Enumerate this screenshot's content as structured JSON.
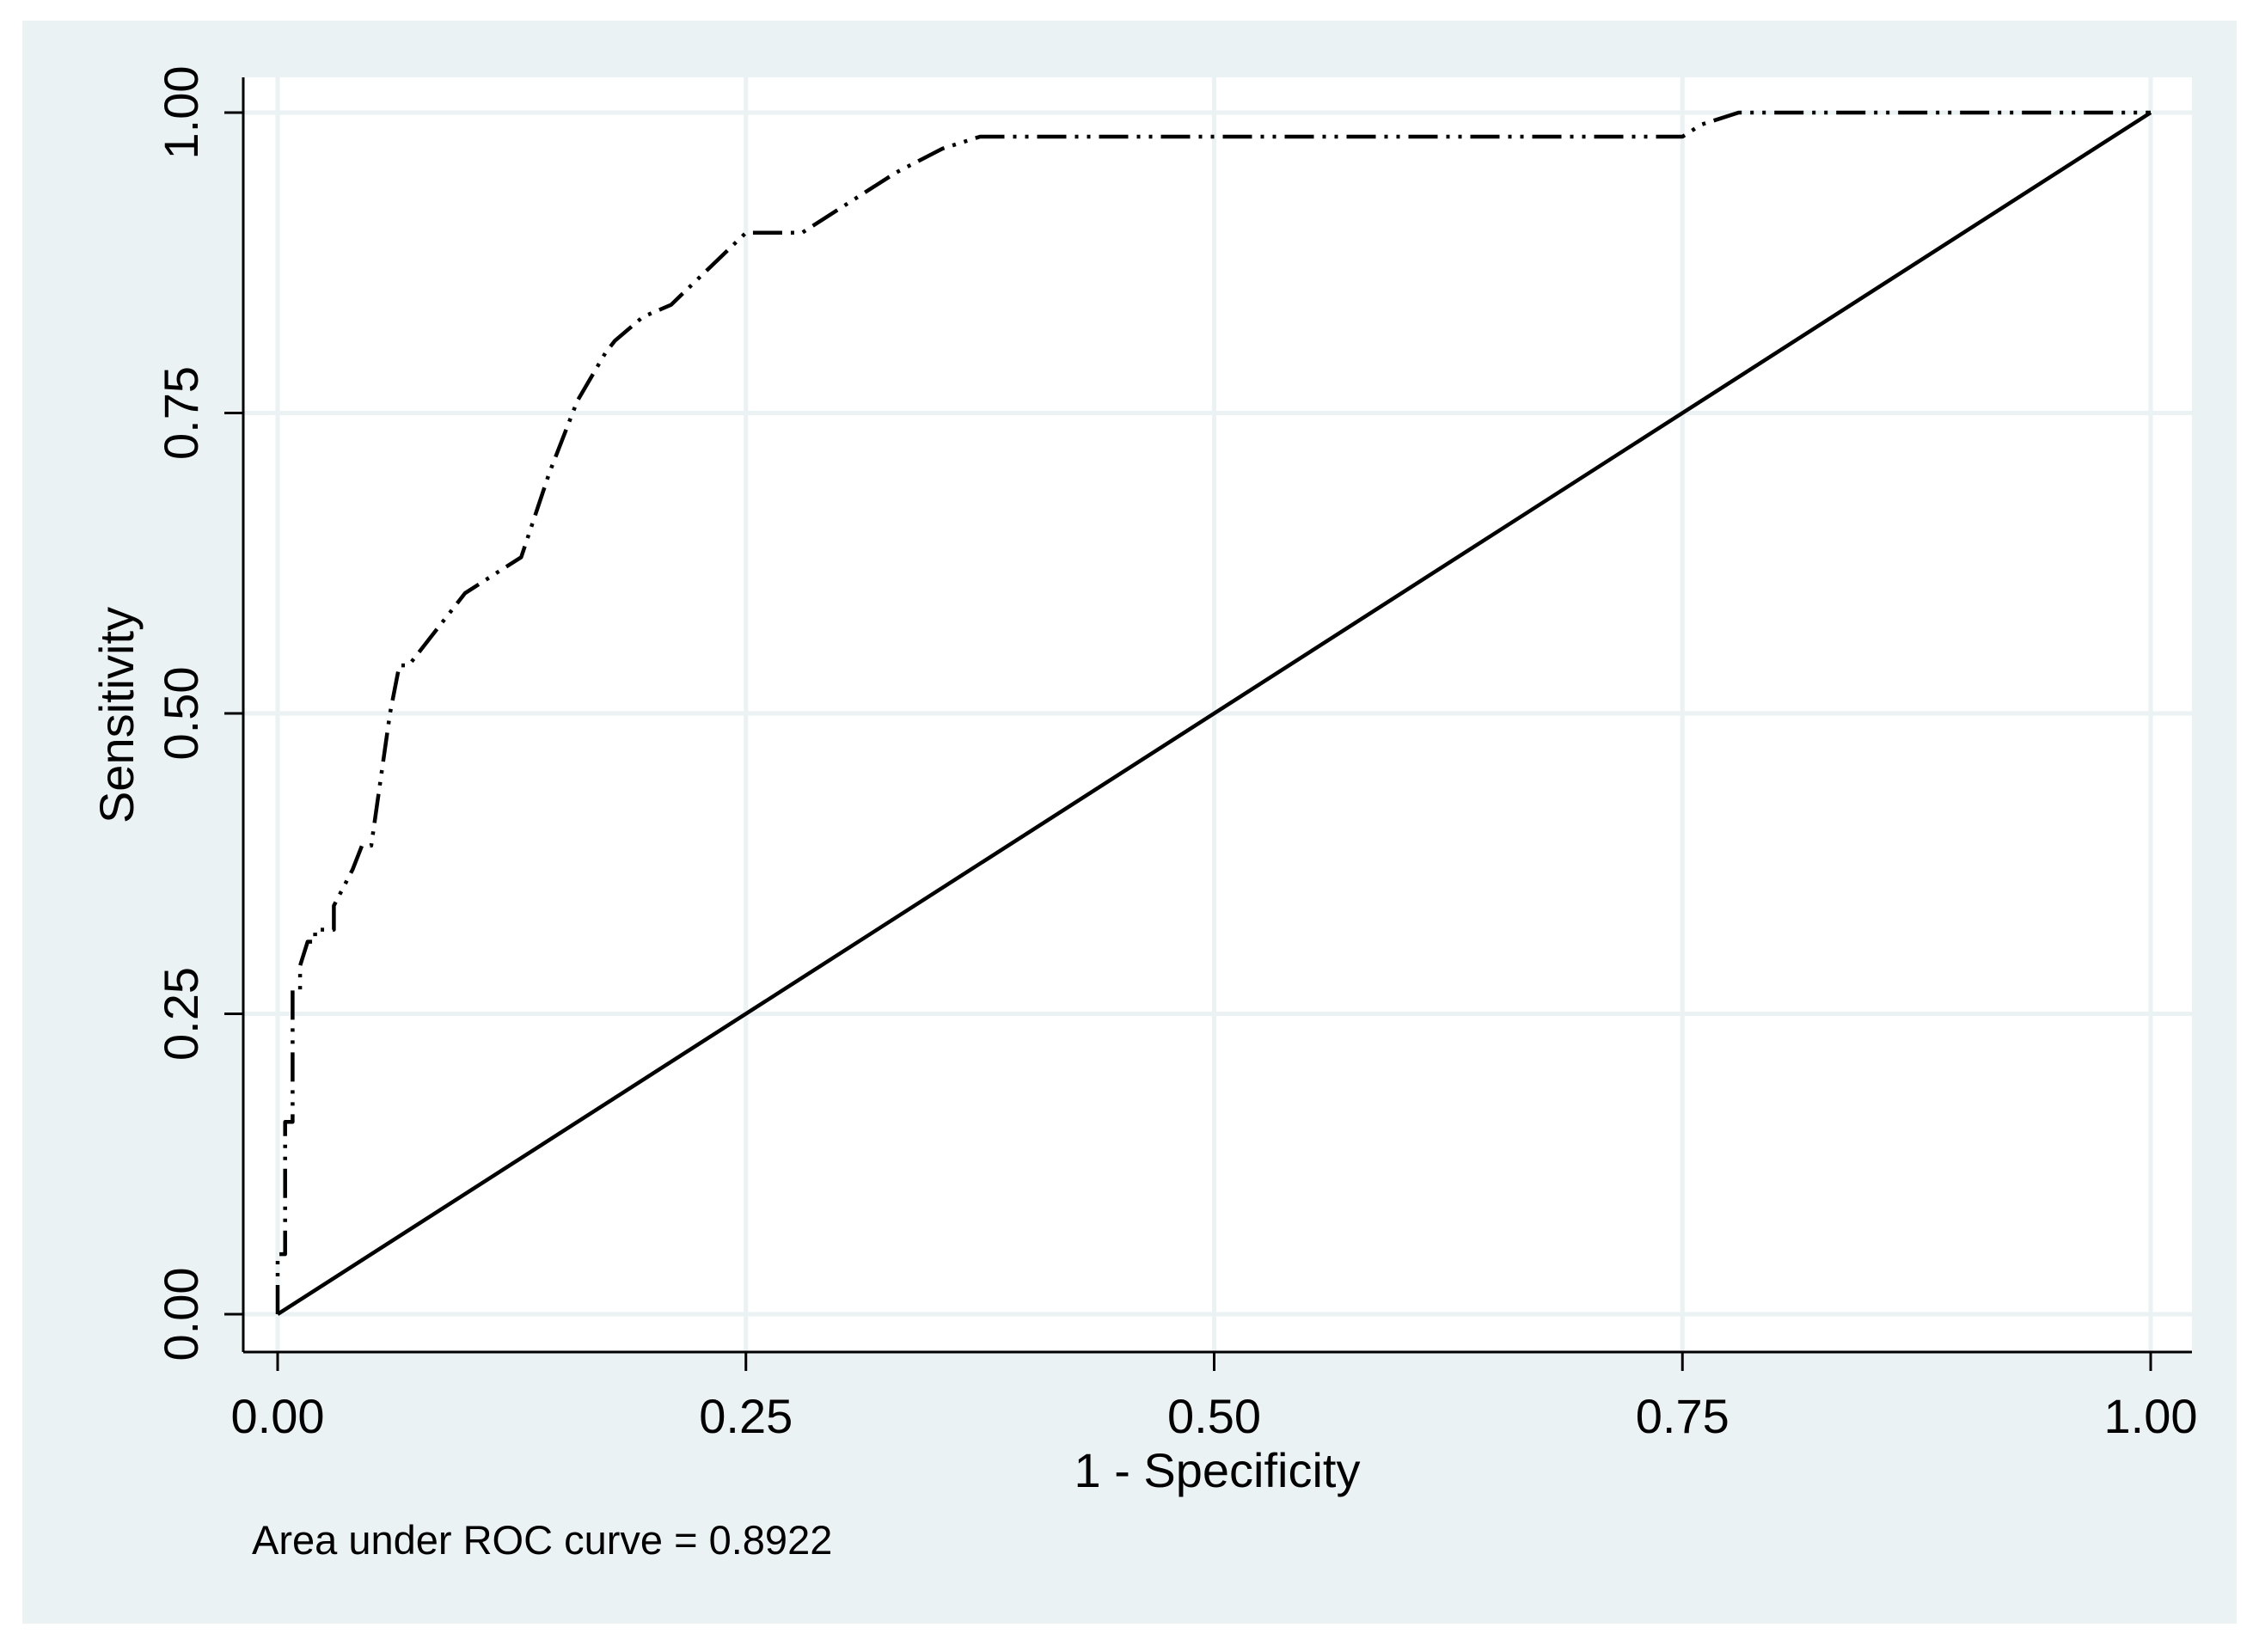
{
  "colors": {
    "page_background": "#ffffff",
    "outer_region": "#eaf2f3",
    "plot_background": "#ffffff",
    "gridline": "#eaf2f3",
    "roc_line": "#000000",
    "reference_line": "#000000"
  },
  "chart_data": {
    "type": "line",
    "title": "",
    "xlabel": "1 - Specificity",
    "ylabel": "Sensitivity",
    "xlim": [
      0,
      1
    ],
    "ylim": [
      0,
      1
    ],
    "xticks": [
      "0.00",
      "0.25",
      "0.50",
      "0.75",
      "1.00"
    ],
    "yticks": [
      "0.00",
      "0.25",
      "0.50",
      "0.75",
      "1.00"
    ],
    "grid": true,
    "note": "Area under ROC curve = 0.8922",
    "series": [
      {
        "line_style": "dash-dot-dot",
        "x": [
          0.0,
          0.0,
          0.004,
          0.004,
          0.008,
          0.008,
          0.012,
          0.012,
          0.016,
          0.02,
          0.02,
          0.03,
          0.03,
          0.04,
          0.045,
          0.05,
          0.06,
          0.065,
          0.07,
          0.09,
          0.1,
          0.12,
          0.13,
          0.145,
          0.16,
          0.175,
          0.18,
          0.195,
          0.21,
          0.23,
          0.25,
          0.26,
          0.28,
          0.3,
          0.33,
          0.355,
          0.375,
          0.38,
          0.5,
          0.74,
          0.75,
          0.76,
          0.78,
          1.0
        ],
        "y": [
          0.0,
          0.05,
          0.05,
          0.16,
          0.16,
          0.27,
          0.27,
          0.29,
          0.31,
          0.31,
          0.32,
          0.32,
          0.34,
          0.37,
          0.39,
          0.39,
          0.5,
          0.54,
          0.54,
          0.58,
          0.6,
          0.62,
          0.63,
          0.7,
          0.76,
          0.8,
          0.81,
          0.83,
          0.84,
          0.87,
          0.9,
          0.9,
          0.9,
          0.92,
          0.95,
          0.97,
          0.98,
          0.98,
          0.98,
          0.98,
          0.98,
          0.99,
          1.0,
          1.0
        ]
      },
      {
        "line_style": "solid",
        "x": [
          0.0,
          1.0
        ],
        "y": [
          0.0,
          1.0
        ]
      }
    ]
  }
}
